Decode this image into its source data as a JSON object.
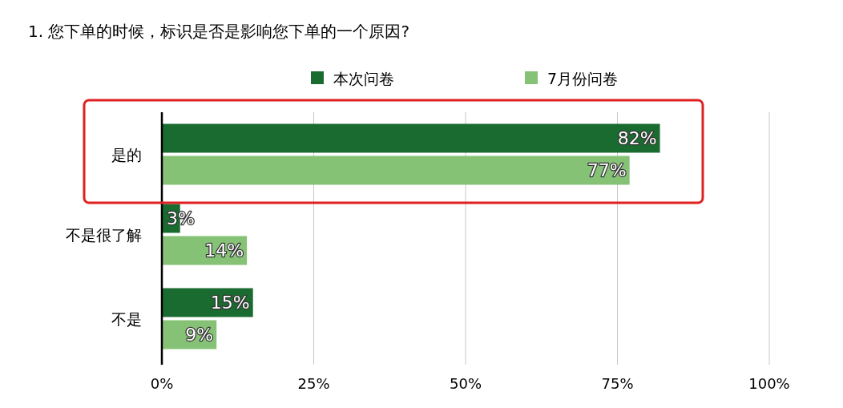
{
  "chart_data": {
    "type": "bar",
    "orientation": "horizontal",
    "title": "1. 您下单的时候，标识是否是影响您下单的一个原因?",
    "categories": [
      "是的",
      "不是很了解",
      "不是"
    ],
    "series": [
      {
        "name": "本次问卷",
        "color": "#1a6b30",
        "values": [
          82,
          3,
          15
        ],
        "value_labels": [
          "82%",
          "3%",
          "15%"
        ]
      },
      {
        "name": "7月份问卷",
        "color": "#86c276",
        "values": [
          77,
          14,
          9
        ],
        "value_labels": [
          "77%",
          "14%",
          "9%"
        ]
      }
    ],
    "xlim": [
      0,
      100
    ],
    "xticks": [
      {
        "value": 0,
        "label": "0%"
      },
      {
        "value": 25,
        "label": "25%"
      },
      {
        "value": 50,
        "label": "50%"
      },
      {
        "value": 75,
        "label": "75%"
      },
      {
        "value": 100,
        "label": "100%"
      }
    ],
    "grid": "x",
    "legend": "top"
  }
}
